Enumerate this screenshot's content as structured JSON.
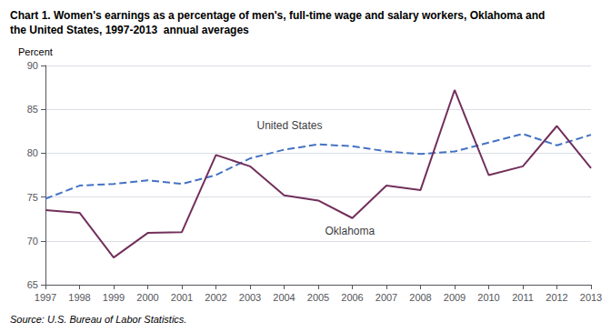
{
  "chart_data": {
    "type": "line",
    "title": "Chart 1. Women's earnings as a percentage of men's, full-time wage and salary workers, Oklahoma and\nthe United States, 1997-2013  annual averages",
    "y_label": "Percent",
    "source": "Source: U.S. Bureau of Labor Statistics.",
    "x": [
      1997,
      1998,
      1999,
      2000,
      2001,
      2002,
      2003,
      2004,
      2005,
      2006,
      2007,
      2008,
      2009,
      2010,
      2011,
      2012,
      2013
    ],
    "series": [
      {
        "name": "United States",
        "color": "#4472c4",
        "line_style": "dashed",
        "values": [
          74.8,
          76.3,
          76.5,
          76.9,
          76.5,
          77.5,
          79.4,
          80.4,
          81.0,
          80.8,
          80.2,
          79.9,
          80.2,
          81.2,
          82.2,
          80.9,
          82.1
        ]
      },
      {
        "name": "Oklahoma",
        "color": "#722F5B",
        "line_style": "solid",
        "values": [
          73.5,
          73.2,
          68.1,
          70.9,
          71.0,
          79.8,
          78.5,
          75.2,
          74.6,
          72.6,
          76.3,
          75.8,
          87.2,
          77.5,
          78.5,
          83.1,
          78.3
        ]
      }
    ],
    "annotations": [
      {
        "text": "United States",
        "x": 2003.2,
        "y": 82.5
      },
      {
        "text": "Oklahoma",
        "x": 2005.2,
        "y": 70.5
      }
    ],
    "xlim": [
      1997,
      2013
    ],
    "xticks": [
      1997,
      1998,
      1999,
      2000,
      2001,
      2002,
      2003,
      2004,
      2005,
      2006,
      2007,
      2008,
      2009,
      2010,
      2011,
      2012,
      2013
    ],
    "ylim": [
      65,
      90
    ],
    "yticks": [
      65,
      70,
      75,
      80,
      85,
      90
    ],
    "grid": true
  }
}
